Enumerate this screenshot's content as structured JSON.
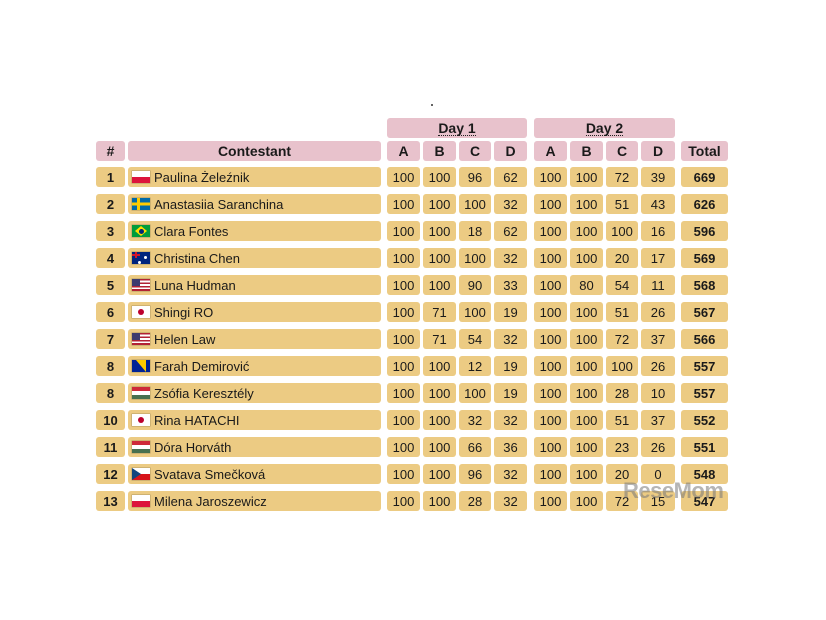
{
  "header": {
    "rank": "#",
    "contestant": "Contestant",
    "day1": "Day 1",
    "day2": "Day 2",
    "problems_day1": [
      "A",
      "B",
      "C",
      "D"
    ],
    "problems_day2": [
      "A",
      "B",
      "C",
      "D"
    ],
    "total": "Total"
  },
  "rows": [
    {
      "rank": "1",
      "flag": "pl",
      "name": "Paulina Żeleźnik",
      "d1": [
        "100",
        "100",
        "96",
        "62"
      ],
      "d2": [
        "100",
        "100",
        "72",
        "39"
      ],
      "total": "669"
    },
    {
      "rank": "2",
      "flag": "se",
      "name": "Anastasiia Saranchina",
      "d1": [
        "100",
        "100",
        "100",
        "32"
      ],
      "d2": [
        "100",
        "100",
        "51",
        "43"
      ],
      "total": "626"
    },
    {
      "rank": "3",
      "flag": "br",
      "name": "Clara Fontes",
      "d1": [
        "100",
        "100",
        "18",
        "62"
      ],
      "d2": [
        "100",
        "100",
        "100",
        "16"
      ],
      "total": "596"
    },
    {
      "rank": "4",
      "flag": "au",
      "name": "Christina Chen",
      "d1": [
        "100",
        "100",
        "100",
        "32"
      ],
      "d2": [
        "100",
        "100",
        "20",
        "17"
      ],
      "total": "569"
    },
    {
      "rank": "5",
      "flag": "us",
      "name": "Luna Hudman",
      "d1": [
        "100",
        "100",
        "90",
        "33"
      ],
      "d2": [
        "100",
        "80",
        "54",
        "11"
      ],
      "total": "568"
    },
    {
      "rank": "6",
      "flag": "jp",
      "name": "Shingi RO",
      "d1": [
        "100",
        "71",
        "100",
        "19"
      ],
      "d2": [
        "100",
        "100",
        "51",
        "26"
      ],
      "total": "567"
    },
    {
      "rank": "7",
      "flag": "us",
      "name": "Helen Law",
      "d1": [
        "100",
        "71",
        "54",
        "32"
      ],
      "d2": [
        "100",
        "100",
        "72",
        "37"
      ],
      "total": "566"
    },
    {
      "rank": "8",
      "flag": "ba",
      "name": "Farah Demirović",
      "d1": [
        "100",
        "100",
        "12",
        "19"
      ],
      "d2": [
        "100",
        "100",
        "100",
        "26"
      ],
      "total": "557"
    },
    {
      "rank": "8",
      "flag": "hu",
      "name": "Zsófia Keresztély",
      "d1": [
        "100",
        "100",
        "100",
        "19"
      ],
      "d2": [
        "100",
        "100",
        "28",
        "10"
      ],
      "total": "557"
    },
    {
      "rank": "10",
      "flag": "jp",
      "name": "Rina HATACHI",
      "d1": [
        "100",
        "100",
        "32",
        "32"
      ],
      "d2": [
        "100",
        "100",
        "51",
        "37"
      ],
      "total": "552"
    },
    {
      "rank": "11",
      "flag": "hu",
      "name": "Dóra Horváth",
      "d1": [
        "100",
        "100",
        "66",
        "36"
      ],
      "d2": [
        "100",
        "100",
        "23",
        "26"
      ],
      "total": "551"
    },
    {
      "rank": "12",
      "flag": "cz",
      "name": "Svatava Smečková",
      "d1": [
        "100",
        "100",
        "96",
        "32"
      ],
      "d2": [
        "100",
        "100",
        "20",
        "0"
      ],
      "total": "548"
    },
    {
      "rank": "13",
      "flag": "pl",
      "name": "Milena Jaroszewicz",
      "d1": [
        "100",
        "100",
        "28",
        "32"
      ],
      "d2": [
        "100",
        "100",
        "72",
        "15"
      ],
      "total": "547"
    }
  ],
  "watermark": "ReseMom"
}
